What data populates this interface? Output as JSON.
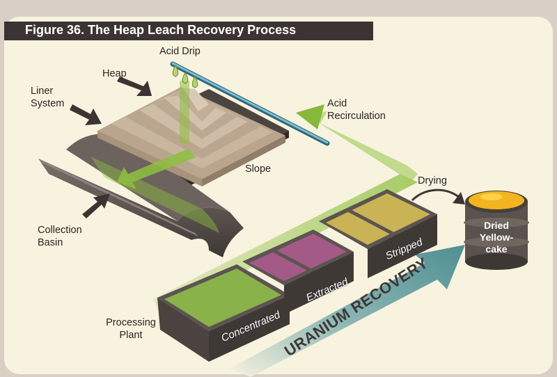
{
  "title": "Figure 36. The Heap Leach Recovery Process",
  "labels": {
    "acid_drip": "Acid Drip",
    "heap": "Heap",
    "liner_system": [
      "Liner",
      "System"
    ],
    "collection_basin": [
      "Collection",
      "Basin"
    ],
    "slope": "Slope",
    "acid_recirculation": [
      "Acid",
      "Recirculation"
    ],
    "drying": "Drying",
    "processing_plant": [
      "Processing",
      "Plant"
    ],
    "dried_yellowcake": [
      "Dried",
      "Yellow-",
      "cake"
    ]
  },
  "tanks": {
    "concentrated": "Concentrated",
    "extracted": "Extracted",
    "stripped": "Stripped"
  },
  "uranium_recovery": "URANIUM RECOVERY",
  "colors": {
    "background": "#d9cfc6",
    "panel": "#f7f3df",
    "title_bar": "#3b3432",
    "green_flow": "#8dbf3f",
    "heap": "#c7b59e",
    "pipe": "#5e9bb0",
    "liner": "#5a524e",
    "concentrated_fluid": "#89b24b",
    "extracted_fluid": "#a35a86",
    "stripped_fluid": "#c9b355",
    "yellowcake": "#f2b51f",
    "recovery_arrow": "#5a9396"
  }
}
